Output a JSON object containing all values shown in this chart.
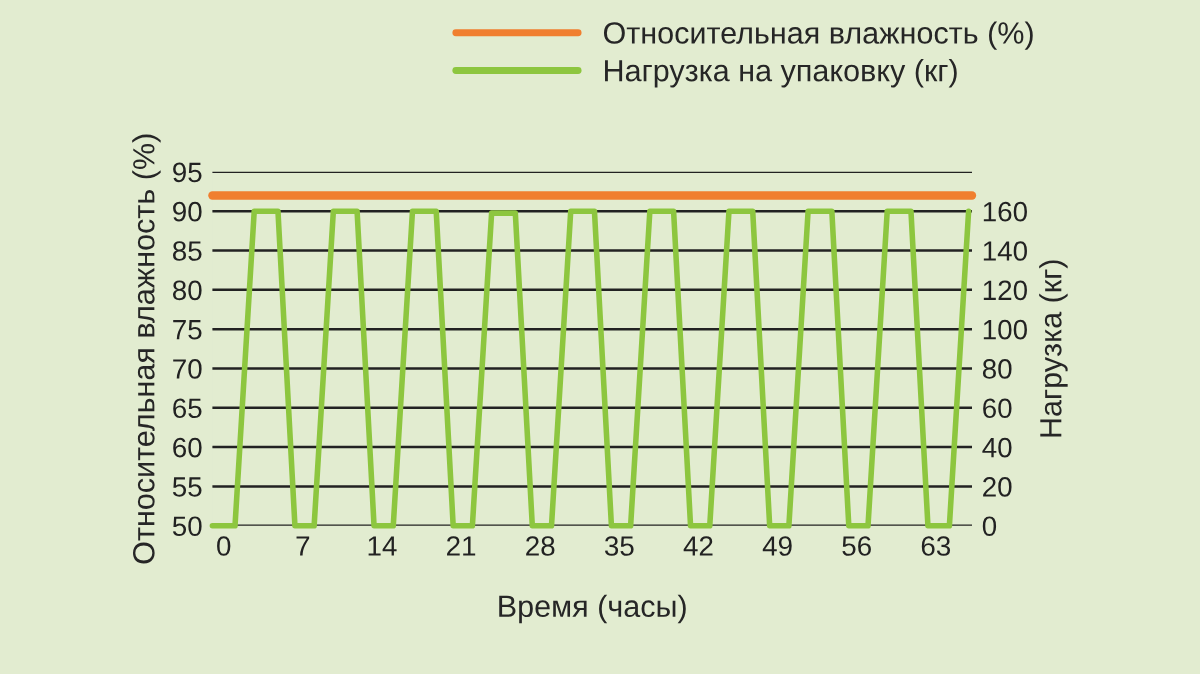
{
  "chart_data": {
    "type": "line",
    "xlabel": "Время (часы)",
    "ylabel": "Относительная влажность (%)",
    "y2label": "Нагрузка (кг)",
    "xlim": [
      -1,
      66.2
    ],
    "xticks": [
      0,
      7,
      14,
      21,
      28,
      35,
      42,
      49,
      56,
      63
    ],
    "ylim": [
      50,
      95
    ],
    "yticks": [
      50,
      55,
      60,
      65,
      70,
      75,
      80,
      85,
      90,
      95
    ],
    "y2lim": [
      0,
      180
    ],
    "y2ticks": [
      0,
      20,
      40,
      60,
      80,
      100,
      120,
      140,
      160
    ],
    "grid": "y",
    "legend": "top right",
    "line_style": "solid",
    "series": [
      {
        "name": "Относительная влажность (%)",
        "color": "#f07f2f",
        "x": [
          -1,
          66.2
        ],
        "values": [
          92,
          92
        ]
      },
      {
        "name": "Нагрузка на упаковку (кг)",
        "color": "#8dc63f",
        "axis": "y2",
        "x": [
          -1,
          1,
          2.7,
          4.8,
          6.3,
          8,
          9.7,
          11.8,
          13.3,
          15,
          16.7,
          18.8,
          20.3,
          22,
          23.7,
          25.8,
          27.3,
          29,
          30.7,
          32.8,
          34.3,
          36,
          37.7,
          39.8,
          41.3,
          43,
          44.7,
          46.8,
          48.3,
          50,
          51.7,
          53.8,
          55.3,
          57,
          58.7,
          60.8,
          62.3,
          64.2,
          65.9
        ],
        "values": [
          0,
          0,
          160,
          160,
          0,
          0,
          160,
          160,
          0,
          0,
          160,
          160,
          0,
          0,
          159,
          159,
          0,
          0,
          160,
          160,
          0,
          0,
          160,
          160,
          0,
          0,
          160,
          160,
          0,
          0,
          160,
          160,
          0,
          0,
          160,
          160,
          0,
          0,
          160
        ]
      }
    ]
  }
}
